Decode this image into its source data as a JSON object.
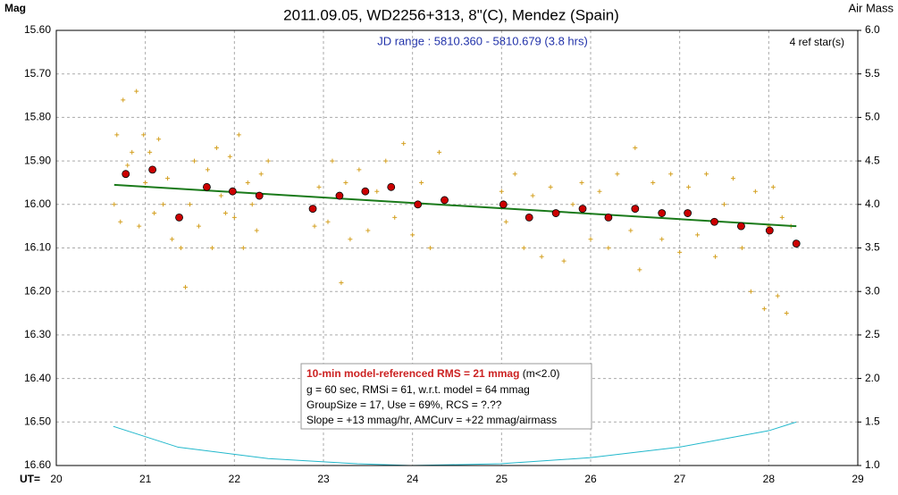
{
  "chart_data": {
    "type": "scatter",
    "title": "2011.09.05, WD2256+313, 8\"(C), Mendez (Spain)",
    "ylabel": "Mag",
    "y2label": "Air Mass",
    "xlabel": "UT=",
    "annotations": [
      "JD range : 5810.360 - 5810.679 (3.8 hrs)",
      "4 ref star(s)"
    ],
    "info_box": {
      "headline": "10-min model-referenced RMS = 21 mmag",
      "headline_note": "(m<2.0)",
      "lines": [
        "g = 60 sec, RMSi = 61, w.r.t. model = 64 mmag",
        "GroupSize = 17, Use = 69%, RCS = ?.??",
        "Slope = +13 mmag/hr, AMCurv = +22 mmag/airmass"
      ]
    },
    "xlim": [
      20,
      29
    ],
    "xticks": [
      20,
      21,
      22,
      23,
      24,
      25,
      26,
      27,
      28,
      29
    ],
    "ylim": [
      16.6,
      15.6
    ],
    "yticks": [
      {
        "value": 15.6,
        "label": "15.60"
      },
      {
        "value": 15.7,
        "label": "15.70"
      },
      {
        "value": 15.8,
        "label": "15.80"
      },
      {
        "value": 15.9,
        "label": "15.90"
      },
      {
        "value": 16.0,
        "label": "16.00"
      },
      {
        "value": 16.1,
        "label": "16.10"
      },
      {
        "value": 16.2,
        "label": "16.20"
      },
      {
        "value": 16.3,
        "label": "16.30"
      },
      {
        "value": 16.4,
        "label": "16.40"
      },
      {
        "value": 16.5,
        "label": "16.50"
      },
      {
        "value": 16.6,
        "label": "16.60"
      }
    ],
    "y2lim": [
      1.0,
      6.0
    ],
    "y2ticks": [
      {
        "value": 1.0,
        "label": "1.0"
      },
      {
        "value": 1.5,
        "label": "1.5"
      },
      {
        "value": 2.0,
        "label": "2.0"
      },
      {
        "value": 2.5,
        "label": "2.5"
      },
      {
        "value": 3.0,
        "label": "3.0"
      },
      {
        "value": 3.5,
        "label": "3.5"
      },
      {
        "value": 4.0,
        "label": "4.0"
      },
      {
        "value": 4.5,
        "label": "4.5"
      },
      {
        "value": 5.0,
        "label": "5.0"
      },
      {
        "value": 5.5,
        "label": "5.5"
      },
      {
        "value": 6.0,
        "label": "6.0"
      }
    ],
    "grid": true,
    "series": [
      {
        "type": "scatter",
        "marker": "plus",
        "color": "#d4a020",
        "x": [
          20.65,
          20.68,
          20.72,
          20.75,
          20.8,
          20.85,
          20.9,
          20.93,
          20.98,
          21.0,
          21.05,
          21.1,
          21.15,
          21.2,
          21.25,
          21.3,
          21.4,
          21.45,
          21.5,
          21.55,
          21.6,
          21.7,
          21.75,
          21.8,
          21.85,
          21.9,
          21.95,
          22.0,
          22.05,
          22.1,
          22.15,
          22.2,
          22.25,
          22.3,
          22.38,
          22.9,
          22.95,
          23.05,
          23.1,
          23.2,
          23.25,
          23.3,
          23.4,
          23.5,
          23.6,
          23.7,
          23.8,
          23.9,
          24.0,
          24.1,
          24.2,
          24.3,
          25.0,
          25.05,
          25.15,
          25.25,
          25.35,
          25.45,
          25.55,
          25.7,
          25.8,
          25.9,
          26.0,
          26.1,
          26.2,
          26.3,
          26.45,
          26.5,
          26.55,
          26.7,
          26.8,
          26.9,
          27.0,
          27.1,
          27.2,
          27.3,
          27.4,
          27.5,
          27.6,
          27.7,
          27.8,
          27.85,
          27.95,
          28.0,
          28.05,
          28.1,
          28.15,
          28.2,
          28.25
        ],
        "values": [
          16.0,
          15.84,
          16.04,
          15.76,
          15.91,
          15.88,
          15.74,
          16.05,
          15.84,
          15.95,
          15.88,
          16.02,
          15.85,
          16.0,
          15.94,
          16.08,
          16.1,
          16.19,
          16.0,
          15.9,
          16.05,
          15.92,
          16.1,
          15.87,
          15.98,
          16.02,
          15.89,
          16.03,
          15.84,
          16.1,
          15.95,
          16.0,
          16.06,
          15.93,
          15.9,
          16.05,
          15.96,
          16.04,
          15.9,
          16.18,
          15.95,
          16.08,
          15.92,
          16.06,
          15.97,
          15.9,
          16.03,
          15.86,
          16.07,
          15.95,
          16.1,
          15.88,
          15.97,
          16.04,
          15.93,
          16.1,
          15.98,
          16.12,
          15.96,
          16.13,
          16.0,
          15.95,
          16.08,
          15.97,
          16.1,
          15.93,
          16.06,
          15.87,
          16.15,
          15.95,
          16.08,
          15.93,
          16.11,
          15.96,
          16.07,
          15.93,
          16.12,
          16.0,
          15.94,
          16.1,
          16.2,
          15.97,
          16.24,
          16.05,
          15.96,
          16.21,
          16.03,
          16.25,
          16.05
        ]
      },
      {
        "type": "line",
        "color": "#1a7a1a",
        "x": [
          20.65,
          28.31
        ],
        "values": [
          15.955,
          16.05
        ]
      },
      {
        "type": "scatter",
        "marker": "circle",
        "color": "#cc0000",
        "x": [
          20.78,
          21.08,
          21.38,
          21.69,
          21.98,
          22.28,
          22.88,
          23.18,
          23.47,
          23.76,
          24.06,
          24.36,
          25.02,
          25.31,
          25.61,
          25.91,
          26.2,
          26.5,
          26.8,
          27.09,
          27.39,
          27.69,
          28.01,
          28.31
        ],
        "values": [
          15.93,
          15.92,
          16.03,
          15.96,
          15.97,
          15.98,
          16.01,
          15.98,
          15.97,
          15.96,
          16.0,
          15.99,
          16.0,
          16.03,
          16.02,
          16.01,
          16.03,
          16.01,
          16.02,
          16.02,
          16.04,
          16.05,
          16.06,
          16.09
        ]
      },
      {
        "type": "line",
        "axis": "y2",
        "color": "#22b8cc",
        "x": [
          20.64,
          21.37,
          22.38,
          23.38,
          23.98,
          24.99,
          25.99,
          26.99,
          28.0,
          28.31
        ],
        "values": [
          1.45,
          1.21,
          1.08,
          1.02,
          1.0,
          1.02,
          1.09,
          1.21,
          1.4,
          1.5
        ]
      }
    ]
  }
}
